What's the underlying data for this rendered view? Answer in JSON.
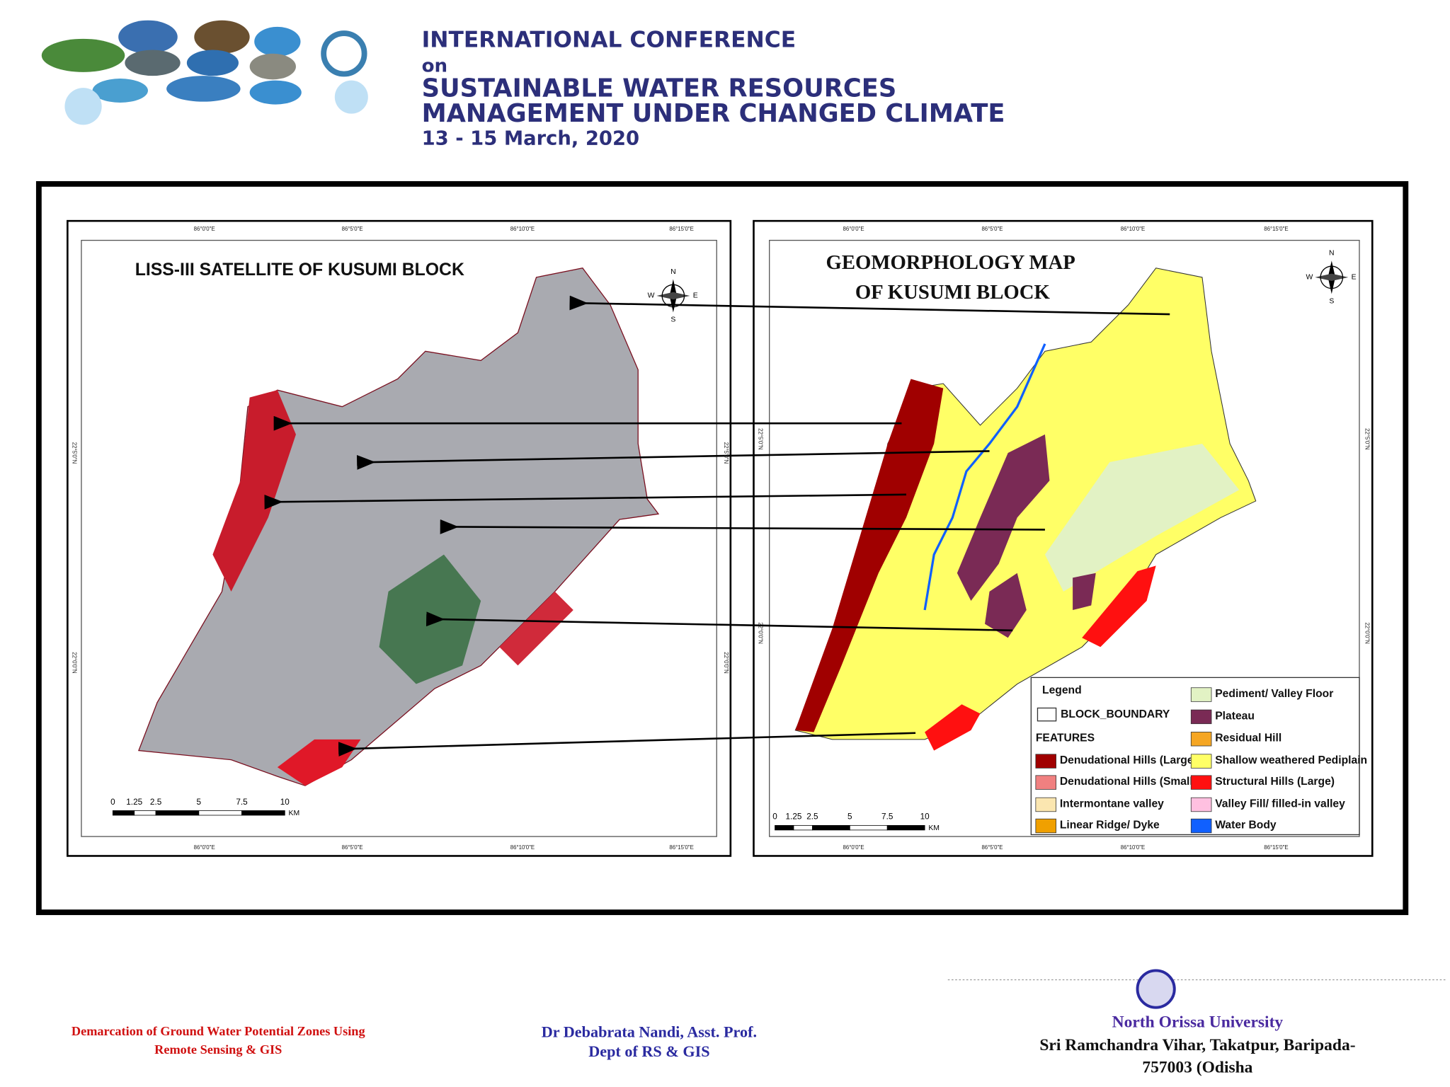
{
  "header": {
    "line1": "INTERNATIONAL CONFERENCE",
    "line2": "on",
    "line3": "SUSTAINABLE WATER RESOURCES",
    "line4": "MANAGEMENT UNDER CHANGED CLIMATE",
    "date": "13 - 15 March, 2020"
  },
  "left_map": {
    "title": "LISS-III SATELLITE OF KUSUMI BLOCK",
    "longitudes": [
      "86°0'0\"E",
      "86°5'0\"E",
      "86°10'0\"E",
      "86°15'0\"E"
    ],
    "latitudes": [
      "22°5'0\"N",
      "22°0'0\"N"
    ],
    "scale": [
      "0",
      "1.25",
      "2.5",
      "5",
      "7.5",
      "10"
    ],
    "scale_unit": "KM"
  },
  "right_map": {
    "title_line1": "GEOMORPHOLOGY MAP",
    "title_line2": "OF KUSUMI BLOCK",
    "longitudes": [
      "86°0'0\"E",
      "86°5'0\"E",
      "86°10'0\"E",
      "86°15'0\"E"
    ],
    "latitudes": [
      "22°5'0\"N",
      "22°0'0\"N"
    ],
    "scale": [
      "0",
      "1.25",
      "2.5",
      "5",
      "7.5",
      "10"
    ],
    "scale_unit": "KM"
  },
  "compass": {
    "n": "N",
    "e": "E",
    "s": "S",
    "w": "W"
  },
  "legend": {
    "title": "Legend",
    "boundary": "BLOCK_BOUNDARY",
    "features_title": "FEATURES",
    "items": [
      {
        "name": "Denudational Hills (Large)",
        "color": "#a00000"
      },
      {
        "name": "Denudational Hills (Small)",
        "color": "#f08080"
      },
      {
        "name": "Intermontane valley",
        "color": "#fbe6b0"
      },
      {
        "name": "Linear Ridge/ Dyke",
        "color": "#f0a000"
      },
      {
        "name": "Pediment/  Valley Floor",
        "color": "#e2f2c4"
      },
      {
        "name": "Plateau",
        "color": "#7a2a55"
      },
      {
        "name": "Residual Hill",
        "color": "#f5a623"
      },
      {
        "name": "Shallow weathered Pediplain",
        "color": "#ffff66"
      },
      {
        "name": "Structural Hills (Large)",
        "color": "#ff1010"
      },
      {
        "name": "Valley Fill/ filled-in valley",
        "color": "#ffc0e0"
      },
      {
        "name": "Water Body",
        "color": "#1060ff"
      }
    ]
  },
  "footer": {
    "left_line1": "Demarcation of Ground Water Potential Zones Using",
    "left_line2": "Remote Sensing & GIS",
    "center_line1": "Dr Debabrata Nandi, Asst. Prof.",
    "center_line2": "Dept of RS & GIS",
    "right_line1": "North Orissa University",
    "right_line2": "Sri Ramchandra Vihar, Takatpur, Baripada-",
    "right_line3": "757003 (Odisha"
  }
}
